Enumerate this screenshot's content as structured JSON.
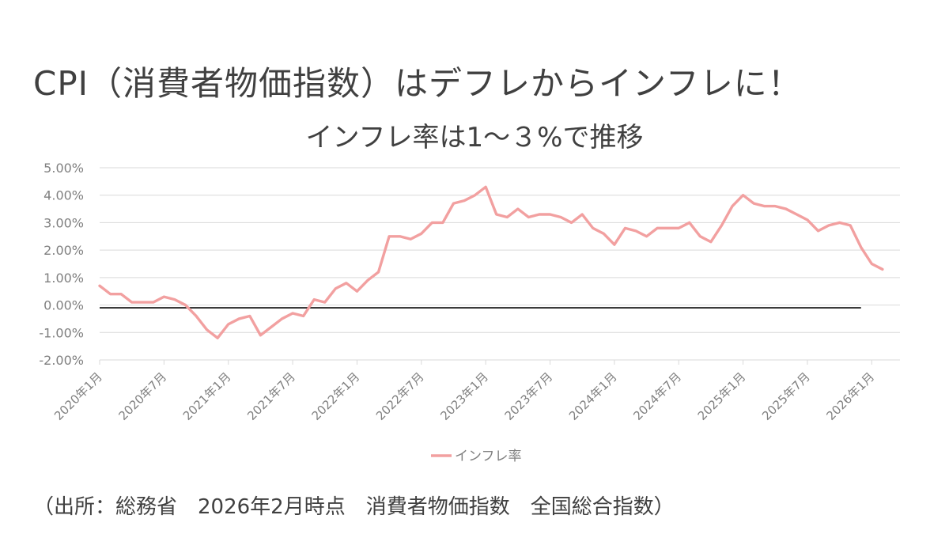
{
  "page_title": "CPI（消費者物価指数）はデフレからインフレに！",
  "source_note": "（出所：総務省　2026年2月時点　消費者物価指数　全国総合指数）",
  "colors": {
    "series": "#f2a0a0",
    "zero_line": "#000000",
    "grid": "#d9d9d9",
    "text": "#404040",
    "tick_text": "#808080"
  },
  "chart_data": {
    "type": "line",
    "title": "インフレ率は1～３%で推移",
    "xlabel": "",
    "ylabel": "",
    "ylim": [
      -2,
      5
    ],
    "y_ticks": [
      -2,
      -1,
      0,
      1,
      2,
      3,
      4,
      5
    ],
    "y_tick_labels": [
      "-2.00%",
      "-1.00%",
      "0.00%",
      "1.00%",
      "2.00%",
      "3.00%",
      "4.00%",
      "5.00%"
    ],
    "x_tick_labels": [
      "2020年1月",
      "2020年7月",
      "2021年1月",
      "2021年7月",
      "2022年1月",
      "2022年7月",
      "2023年1月",
      "2023年7月",
      "2024年1月",
      "2024年7月",
      "2025年1月",
      "2025年7月",
      "2026年1月"
    ],
    "x_start": "2020年1月",
    "x_end": "2026年2月",
    "grid": true,
    "legend_position": "bottom",
    "reference_line_y": -0.1,
    "series": [
      {
        "name": "インフレ率",
        "values": [
          0.7,
          0.4,
          0.4,
          0.1,
          0.1,
          0.1,
          0.3,
          0.2,
          0.0,
          -0.4,
          -0.9,
          -1.2,
          -0.7,
          -0.5,
          -0.4,
          -1.1,
          -0.8,
          -0.5,
          -0.3,
          -0.4,
          0.2,
          0.1,
          0.6,
          0.8,
          0.5,
          0.9,
          1.2,
          2.5,
          2.5,
          2.4,
          2.6,
          3.0,
          3.0,
          3.7,
          3.8,
          4.0,
          4.3,
          3.3,
          3.2,
          3.5,
          3.2,
          3.3,
          3.3,
          3.2,
          3.0,
          3.3,
          2.8,
          2.6,
          2.2,
          2.8,
          2.7,
          2.5,
          2.8,
          2.8,
          2.8,
          3.0,
          2.5,
          2.3,
          2.9,
          3.6,
          4.0,
          3.7,
          3.6,
          3.6,
          3.5,
          3.3,
          3.1,
          2.7,
          2.9,
          3.0,
          2.9,
          2.1,
          1.5,
          1.3
        ]
      }
    ]
  }
}
